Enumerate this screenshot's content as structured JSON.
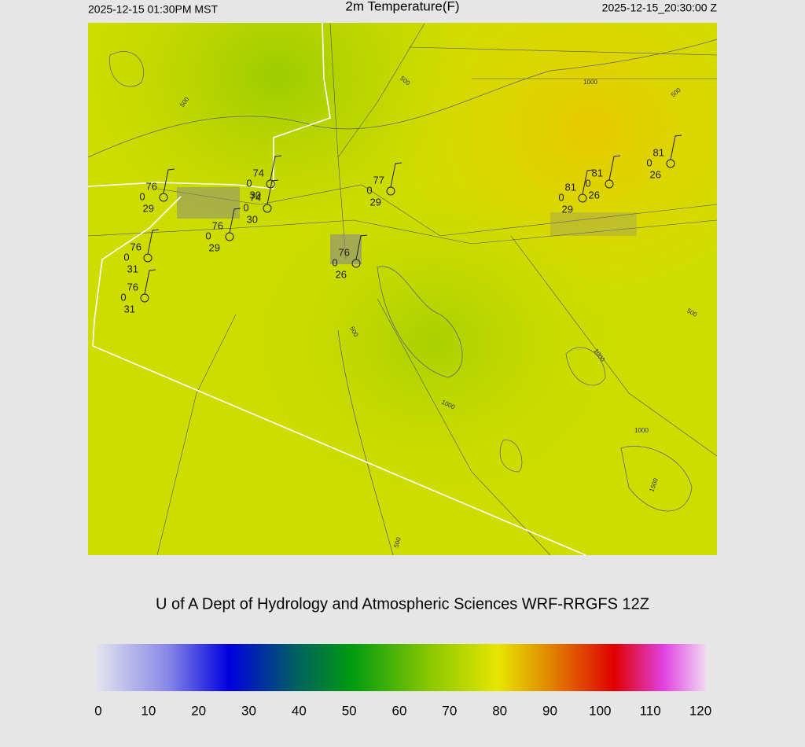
{
  "header": {
    "left": "2025-12-15 01:30PM MST",
    "title": "2m Temperature(F)",
    "right": "2025-12-15_20:30:00 Z"
  },
  "map": {
    "contour_labels": [
      "500",
      "500",
      "500",
      "500",
      "500",
      "500",
      "1000",
      "1000",
      "1000",
      "1000",
      "1500"
    ],
    "stations": [
      {
        "temp": "76",
        "mid": "0",
        "dew": "29"
      },
      {
        "temp": "74",
        "mid": "0",
        "dew": "30"
      },
      {
        "temp": "74",
        "mid": "0",
        "dew": "30"
      },
      {
        "temp": "76",
        "mid": "0",
        "dew": "29"
      },
      {
        "temp": "76",
        "mid": "0",
        "dew": "31"
      },
      {
        "temp": "76",
        "mid": "0",
        "dew": "31"
      },
      {
        "temp": "76",
        "mid": "0",
        "dew": "26"
      },
      {
        "temp": "77",
        "mid": "0",
        "dew": "29"
      },
      {
        "temp": "81",
        "mid": "0",
        "dew": "29"
      },
      {
        "temp": "81",
        "mid": "0",
        "dew": "26"
      },
      {
        "temp": "81",
        "mid": "0",
        "dew": "26"
      }
    ]
  },
  "credit": "U of A Dept of Hydrology and Atmospheric Sciences WRF-RRGFS 12Z",
  "colorbar": {
    "range": [
      0,
      120
    ],
    "ticks": [
      0,
      10,
      20,
      30,
      40,
      50,
      60,
      70,
      80,
      90,
      100,
      110,
      120
    ],
    "colors": [
      "#e6e6ee",
      "#8888e8",
      "#0000e0",
      "#006060",
      "#009a10",
      "#8cc800",
      "#e6e600",
      "#e08000",
      "#e00000",
      "#e040e0",
      "#f0d8f0"
    ]
  }
}
